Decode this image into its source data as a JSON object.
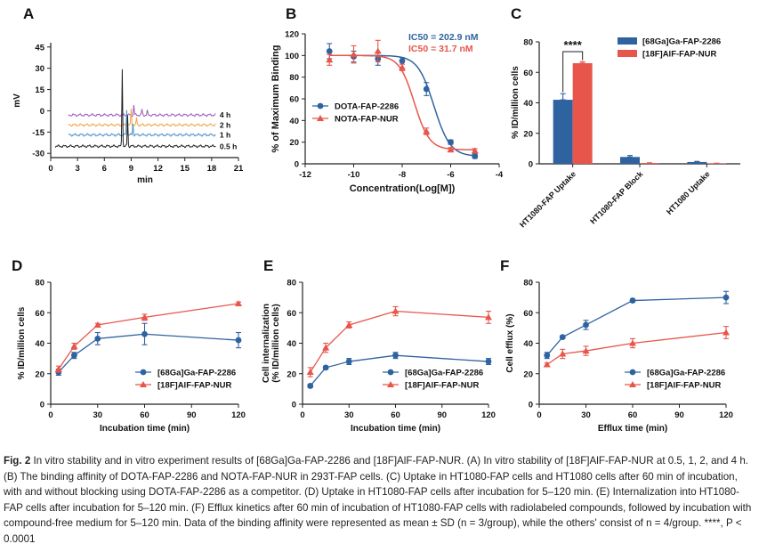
{
  "colors": {
    "ga": "#2f63a0",
    "al": "#e8554b",
    "axis": "#222222",
    "purple": "#9b59b6",
    "orange": "#f0a347",
    "blue": "#4a90c8",
    "black": "#222222"
  },
  "chart_data": [
    {
      "panel": "A",
      "type": "line",
      "title": "",
      "xlabel": "min",
      "ylabel": "mV",
      "xlim": [
        0,
        21
      ],
      "ylim": [
        -33,
        48
      ],
      "xticks": [
        "0",
        "3",
        "6",
        "9",
        "12",
        "15",
        "18",
        "21"
      ],
      "yticks": [
        "45",
        "30",
        "15",
        "0",
        "-15",
        "-30"
      ],
      "series": [
        {
          "name": "4 h",
          "color": "purple",
          "offset": -3,
          "peaks": [
            {
              "x": 9.3,
              "h": 7
            },
            {
              "x": 10.2,
              "h": 4
            },
            {
              "x": 10.8,
              "h": 3
            }
          ]
        },
        {
          "name": "2 h",
          "color": "orange",
          "offset": -10,
          "peaks": [
            {
              "x": 9.0,
              "h": 11
            },
            {
              "x": 9.6,
              "h": 5
            }
          ]
        },
        {
          "name": "1 h",
          "color": "blue",
          "offset": -17,
          "peaks": [
            {
              "x": 8.5,
              "h": 18
            },
            {
              "x": 9.2,
              "h": 8
            }
          ]
        },
        {
          "name": "0.5 h",
          "color": "black",
          "offset": -25,
          "peaks": [
            {
              "x": 8.0,
              "h": 55
            },
            {
              "x": 8.6,
              "h": 22
            }
          ]
        }
      ]
    },
    {
      "panel": "B",
      "type": "line",
      "title": "",
      "xlabel": "Concentration(Log[M])",
      "ylabel": "% of Maximum Binding",
      "xlim": [
        -12,
        -4
      ],
      "ylim": [
        0,
        120
      ],
      "xticks": [
        "-12",
        "-10",
        "-8",
        "-6",
        "-4"
      ],
      "yticks": [
        "0",
        "20",
        "40",
        "60",
        "80",
        "100",
        "120"
      ],
      "annotations": [
        {
          "text": "IC50 = 202.9 nM",
          "color": "ga"
        },
        {
          "text": "IC50 = 31.7 nM",
          "color": "al"
        }
      ],
      "series": [
        {
          "name": "DOTA-FAP-2286",
          "color": "ga",
          "marker": "circle",
          "x": [
            -11,
            -10,
            -9,
            -8,
            -7,
            -6,
            -5
          ],
          "y": [
            104,
            99,
            97,
            95,
            69,
            20,
            7
          ],
          "err": [
            7,
            5,
            6,
            3,
            6,
            2,
            2
          ],
          "ic50": -6.69,
          "top": 100,
          "bottom": 7,
          "hill": 1.3
        },
        {
          "name": "NOTA-FAP-NUR",
          "color": "al",
          "marker": "triangle",
          "x": [
            -11,
            -10,
            -9,
            -8,
            -7,
            -6,
            -5
          ],
          "y": [
            96,
            101,
            104,
            89,
            30,
            13,
            12
          ],
          "err": [
            5,
            8,
            10,
            3,
            3,
            2,
            2
          ],
          "ic50": -7.5,
          "top": 100,
          "bottom": 13,
          "hill": 1.4
        }
      ]
    },
    {
      "panel": "C",
      "type": "bar",
      "title": "",
      "xlabel": "",
      "ylabel": "% ID/million cells",
      "ylim": [
        0,
        80
      ],
      "yticks": [
        "0",
        "20",
        "40",
        "60",
        "80"
      ],
      "categories": [
        "HT1080-FAP Uptake",
        "HT1080-FAP Block",
        "HT1080 Uptake"
      ],
      "significance": "****",
      "series": [
        {
          "name": "[68Ga]Ga-FAP-2286",
          "color": "ga",
          "values": [
            42,
            4.5,
            1.2
          ],
          "err": [
            4,
            1,
            0.4
          ]
        },
        {
          "name": "[18F]AlF-FAP-NUR",
          "color": "al",
          "values": [
            66,
            0.5,
            0.3
          ],
          "err": [
            1,
            0.2,
            0.1
          ]
        }
      ]
    },
    {
      "panel": "D",
      "type": "line",
      "title": "",
      "xlabel": "Incubation time (min)",
      "ylabel": "% ID/million cells",
      "xlim": [
        0,
        120
      ],
      "ylim": [
        0,
        80
      ],
      "xticks": [
        "0",
        "30",
        "60",
        "90",
        "120"
      ],
      "yticks": [
        "0",
        "20",
        "40",
        "60",
        "80"
      ],
      "series": [
        {
          "name": "[68Ga]Ga-FAP-2286",
          "color": "ga",
          "marker": "circle",
          "x": [
            5,
            15,
            30,
            60,
            120
          ],
          "y": [
            21,
            32,
            43,
            46,
            42
          ],
          "err": [
            2,
            2,
            4,
            7,
            5
          ]
        },
        {
          "name": "[18F]AlF-FAP-NUR",
          "color": "al",
          "marker": "triangle",
          "x": [
            5,
            15,
            30,
            60,
            120
          ],
          "y": [
            23,
            38,
            52,
            57,
            66
          ],
          "err": [
            2,
            2,
            1,
            2,
            1
          ]
        }
      ]
    },
    {
      "panel": "E",
      "type": "line",
      "title": "",
      "xlabel": "Incubation time (min)",
      "ylabel": "Cell internalization (% ID/million cells)",
      "ylabel_lines": [
        "Cell internalization",
        "(% ID/million cells)"
      ],
      "xlim": [
        0,
        120
      ],
      "ylim": [
        0,
        80
      ],
      "xticks": [
        "0",
        "30",
        "60",
        "90",
        "120"
      ],
      "yticks": [
        "0",
        "20",
        "40",
        "60",
        "80"
      ],
      "series": [
        {
          "name": "[68Ga]Ga-FAP-2286",
          "color": "ga",
          "marker": "circle",
          "x": [
            5,
            15,
            30,
            60,
            120
          ],
          "y": [
            12,
            24,
            28,
            32,
            28
          ],
          "err": [
            1,
            1,
            2,
            2,
            2
          ]
        },
        {
          "name": "[18F]AlF-FAP-NUR",
          "color": "al",
          "marker": "triangle",
          "x": [
            5,
            15,
            30,
            60,
            120
          ],
          "y": [
            21,
            37,
            52,
            61,
            57
          ],
          "err": [
            3,
            3,
            2,
            3,
            4
          ]
        }
      ]
    },
    {
      "panel": "F",
      "type": "line",
      "title": "",
      "xlabel": "Efflux time (min)",
      "ylabel": "Cell efflux (%)",
      "xlim": [
        0,
        120
      ],
      "ylim": [
        0,
        80
      ],
      "xticks": [
        "0",
        "30",
        "60",
        "90",
        "120"
      ],
      "yticks": [
        "0",
        "20",
        "40",
        "60",
        "80"
      ],
      "series": [
        {
          "name": "[68Ga]Ga-FAP-2286",
          "color": "ga",
          "marker": "circle",
          "x": [
            5,
            15,
            30,
            60,
            120
          ],
          "y": [
            32,
            44,
            52,
            68,
            70
          ],
          "err": [
            2,
            1,
            3,
            1,
            4
          ]
        },
        {
          "name": "[18F]AlF-FAP-NUR",
          "color": "al",
          "marker": "triangle",
          "x": [
            5,
            15,
            30,
            60,
            120
          ],
          "y": [
            26,
            33,
            35,
            40,
            47
          ],
          "err": [
            1,
            3,
            3,
            3,
            4
          ]
        }
      ]
    }
  ],
  "caption": {
    "label": "Fig. 2",
    "text": " In vitro stability and in vitro experiment results of [68Ga]Ga-FAP-2286 and [18F]AlF-FAP-NUR. (A) In vitro stability of [18F]AlF-FAP-NUR at 0.5, 1, 2, and 4 h. (B) The binding affinity of DOTA-FAP-2286 and NOTA-FAP-NUR in 293T-FAP cells. (C) Uptake in HT1080-FAP cells and HT1080 cells after 60 min of incubation, with and without blocking using DOTA-FAP-2286 as a competitor. (D) Uptake in HT1080-FAP cells after incubation for 5–120 min. (E) Internalization into HT1080-FAP cells after incubation for 5–120 min. (F) Efflux kinetics after 60 min of incubation of HT1080-FAP cells with radiolabeled compounds, followed by incubation with compound-free medium for 5–120 min. Data of the binding affinity were represented as mean ± SD (n = 3/group), while the others' consist of n = 4/group. ****, P < 0.0001"
  }
}
